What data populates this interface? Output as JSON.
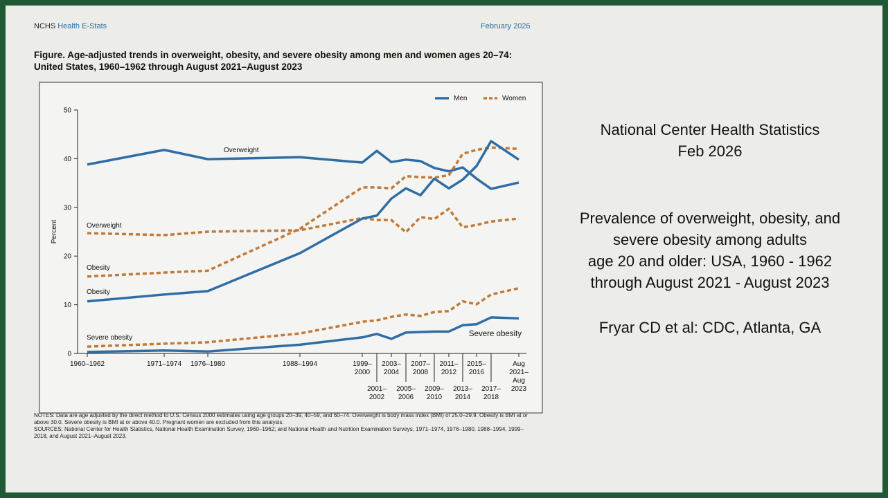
{
  "header": {
    "agency": "NCHS",
    "series_name": "Health E-Stats",
    "date": "February 2026"
  },
  "figure_title": "Figure. Age-adjusted trends in overweight, obesity, and severe obesity among men and women ages 20–74: United States, 1960–1962 through August 2021–August 2023",
  "chart_data": {
    "type": "line",
    "y_label": "Percent",
    "categories": [
      "1960–1962",
      "1971–1974",
      "1976–1980",
      "1988–1994",
      "1999–2000",
      "2001–2002",
      "2003–2004",
      "2005–2006",
      "2007–2008",
      "2009–2010",
      "2011–2012",
      "2013–2014",
      "2015–2016",
      "2017–2018",
      "Aug 2021–Aug 2023"
    ],
    "ylim": [
      0,
      50
    ],
    "yticks": [
      0,
      10,
      20,
      30,
      40,
      50
    ],
    "grid": false,
    "legend": "top-right",
    "series": [
      {
        "name": "Men",
        "label": "Overweight",
        "color": "#2f6ea5",
        "style": "solid",
        "values": [
          38.8,
          41.8,
          39.9,
          40.3,
          39.2,
          41.6,
          39.3,
          39.8,
          39.5,
          38.1,
          37.4,
          38.2,
          35.9,
          33.8,
          35.1
        ]
      },
      {
        "name": "Women",
        "label": "Overweight",
        "color": "#c07a3a",
        "style": "dotted",
        "values": [
          24.7,
          24.3,
          25.0,
          25.3,
          27.8,
          27.4,
          27.4,
          24.9,
          28.0,
          27.6,
          29.7,
          25.9,
          26.4,
          27.1,
          27.7
        ]
      },
      {
        "name": "Women",
        "label": "Obesity",
        "color": "#c07a3a",
        "style": "dotted",
        "values": [
          15.8,
          16.6,
          17.0,
          25.6,
          34.1,
          34.1,
          33.9,
          36.4,
          36.2,
          36.1,
          36.6,
          41.0,
          41.8,
          42.3,
          42.0
        ]
      },
      {
        "name": "Men",
        "label": "Obesity",
        "color": "#2f6ea5",
        "style": "solid",
        "values": [
          10.7,
          12.1,
          12.8,
          20.6,
          27.7,
          28.3,
          31.8,
          33.9,
          32.5,
          35.9,
          33.9,
          35.7,
          38.5,
          43.6,
          39.8
        ]
      },
      {
        "name": "Women",
        "label": "Severe obesity",
        "color": "#c07a3a",
        "style": "dotted",
        "values": [
          1.4,
          2.0,
          2.3,
          4.1,
          6.5,
          6.8,
          7.5,
          8.0,
          7.7,
          8.5,
          8.7,
          10.7,
          10.1,
          12.1,
          13.4
        ]
      },
      {
        "name": "Men",
        "label": "Severe obesity",
        "color": "#2f6ea5",
        "style": "solid",
        "values": [
          0.3,
          0.6,
          0.4,
          1.8,
          3.3,
          4.0,
          3.0,
          4.3,
          4.4,
          4.5,
          4.5,
          5.8,
          6.0,
          7.4,
          7.2
        ]
      }
    ]
  },
  "notes": [
    "NOTES: Data are age adjusted by the direct method to U.S. Census 2000 estimates using age groups 20–39, 40–59, and 60–74. Overweight is body mass index (BMI) of 25.0–29.9. Obesity is BMI at or above 30.0. Severe obesity is BMI at or above 40.0. Pregnant women are excluded from this analysis.",
    "SOURCES: National Center for Health Statistics, National Health Examination Survey, 1960–1962; and National Health and Nutrition Examination Surveys, 1971–1974, 1976–1980, 1988–1994, 1999–2018, and August 2021–August 2023."
  ],
  "side_panel": {
    "source": [
      "National Center Health Statistics",
      "Feb 2026"
    ],
    "description": [
      "Prevalence of overweight, obesity, and",
      "severe obesity among adults",
      "age 20 and older: USA, 1960 - 1962",
      "through August 2021 - August 2023"
    ],
    "citation": "Fryar CD et al: CDC, Atlanta, GA"
  }
}
